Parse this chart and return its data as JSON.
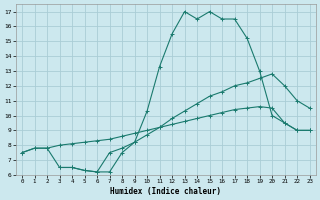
{
  "xlabel": "Humidex (Indice chaleur)",
  "bg_color": "#cce8ee",
  "line_color": "#1a7a6e",
  "grid_color": "#aacdd6",
  "line1_x": [
    0,
    1,
    2,
    3,
    4,
    5,
    6,
    7,
    8,
    9,
    10,
    11,
    12,
    13,
    14,
    15,
    16,
    17,
    18,
    19,
    20,
    21,
    22,
    23
  ],
  "line1_y": [
    7.5,
    7.8,
    7.8,
    8.0,
    8.1,
    8.2,
    8.3,
    8.4,
    8.6,
    8.8,
    9.0,
    9.2,
    9.4,
    9.6,
    9.8,
    10.0,
    10.2,
    10.4,
    10.5,
    10.6,
    10.5,
    9.5,
    9.0,
    9.0
  ],
  "line2_x": [
    0,
    1,
    2,
    3,
    4,
    5,
    6,
    7,
    8,
    9,
    10,
    11,
    12,
    13,
    14,
    15,
    16,
    17,
    18,
    19,
    20,
    21,
    22,
    23
  ],
  "line2_y": [
    7.5,
    7.8,
    7.8,
    6.5,
    6.5,
    6.3,
    6.2,
    7.5,
    7.8,
    8.2,
    8.7,
    9.2,
    9.8,
    10.3,
    10.8,
    11.3,
    11.6,
    12.0,
    12.2,
    12.5,
    12.8,
    12.0,
    11.0,
    10.5
  ],
  "line3_x": [
    3,
    4,
    5,
    6,
    7,
    8,
    9,
    10,
    11,
    12,
    13,
    14,
    15,
    16,
    17,
    18,
    19,
    20,
    21,
    22,
    23
  ],
  "line3_y": [
    6.5,
    6.5,
    6.3,
    6.2,
    6.2,
    7.5,
    8.2,
    10.3,
    13.3,
    15.5,
    17.0,
    16.5,
    17.0,
    16.5,
    16.5,
    15.2,
    13.0,
    10.0,
    9.5,
    9.0,
    9.0
  ],
  "xlim": [
    -0.5,
    23.5
  ],
  "ylim": [
    6,
    17.5
  ],
  "xticks": [
    0,
    1,
    2,
    3,
    4,
    5,
    6,
    7,
    8,
    9,
    10,
    11,
    12,
    13,
    14,
    15,
    16,
    17,
    18,
    19,
    20,
    21,
    22,
    23
  ],
  "yticks": [
    6,
    7,
    8,
    9,
    10,
    11,
    12,
    13,
    14,
    15,
    16,
    17
  ]
}
